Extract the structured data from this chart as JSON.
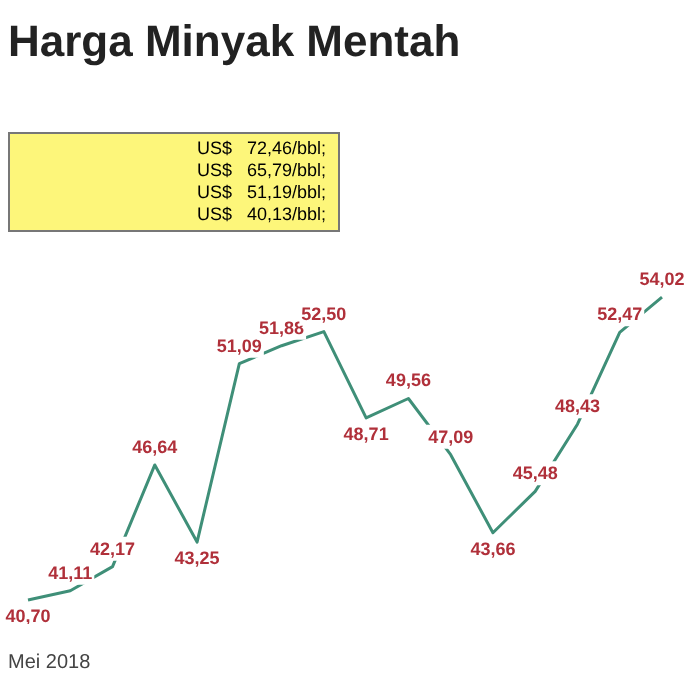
{
  "chart_data": {
    "type": "line",
    "title": "Harga Minyak Mentah",
    "categories": [
      null,
      null,
      null,
      null,
      null,
      null,
      null,
      null,
      null,
      null,
      null,
      null,
      null,
      null,
      null,
      null
    ],
    "series": [
      {
        "color": "#3f8f78",
        "values": [
          40.7,
          41.11,
          42.17,
          46.64,
          43.25,
          51.09,
          51.88,
          52.5,
          48.71,
          49.56,
          47.09,
          43.66,
          45.48,
          48.43,
          52.47,
          54.02
        ],
        "value_labels": [
          "40,70",
          "41,11",
          "42,17",
          "46,64",
          "43,25",
          "51,09",
          "51,88",
          "52,50",
          "48,71",
          "49,56",
          "47,09",
          "43,66",
          "45,48",
          "48,43",
          "52,47",
          "54,02"
        ]
      }
    ],
    "grid": false,
    "legend": false,
    "marker": "none",
    "annotations": [
      "US$   72,46/bbl;",
      "US$   65,79/bbl;",
      "US$   51,19/bbl;",
      "US$   40,13/bbl;",
      "Mei 2018"
    ]
  }
}
